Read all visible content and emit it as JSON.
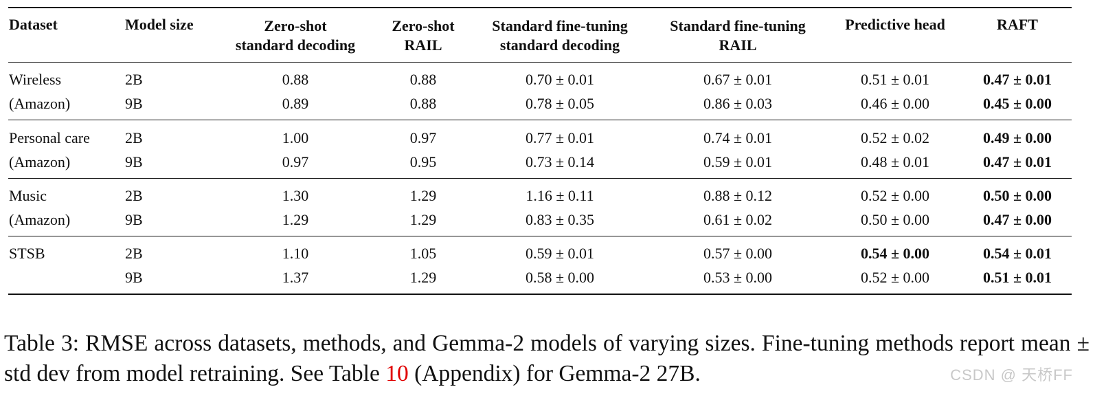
{
  "table": {
    "headers": [
      [
        "Dataset"
      ],
      [
        "Model size"
      ],
      [
        "Zero-shot",
        "standard decoding"
      ],
      [
        "Zero-shot",
        "RAIL"
      ],
      [
        "Standard fine-tuning",
        "standard decoding"
      ],
      [
        "Standard fine-tuning",
        "RAIL"
      ],
      [
        "Predictive head"
      ],
      [
        "RAFT"
      ]
    ],
    "rows": [
      {
        "dataset": "Wireless",
        "size": "2B",
        "zs_std": "0.88",
        "zs_rail": "0.88",
        "ft_std": "0.70 ± 0.01",
        "ft_rail": "0.67 ± 0.01",
        "pred": "0.51 ± 0.01",
        "raft": "0.47 ± 0.01",
        "pred_bold": false,
        "raft_bold": true
      },
      {
        "dataset": "(Amazon)",
        "size": "9B",
        "zs_std": "0.89",
        "zs_rail": "0.88",
        "ft_std": "0.78 ± 0.05",
        "ft_rail": "0.86 ± 0.03",
        "pred": "0.46 ± 0.00",
        "raft": "0.45 ± 0.00",
        "pred_bold": false,
        "raft_bold": true
      },
      {
        "dataset": "Personal care",
        "size": "2B",
        "zs_std": "1.00",
        "zs_rail": "0.97",
        "ft_std": "0.77 ± 0.01",
        "ft_rail": "0.74 ± 0.01",
        "pred": "0.52 ± 0.02",
        "raft": "0.49 ± 0.00",
        "pred_bold": false,
        "raft_bold": true
      },
      {
        "dataset": "(Amazon)",
        "size": "9B",
        "zs_std": "0.97",
        "zs_rail": "0.95",
        "ft_std": "0.73 ± 0.14",
        "ft_rail": "0.59 ± 0.01",
        "pred": "0.48 ± 0.01",
        "raft": "0.47 ± 0.01",
        "pred_bold": false,
        "raft_bold": true
      },
      {
        "dataset": "Music",
        "size": "2B",
        "zs_std": "1.30",
        "zs_rail": "1.29",
        "ft_std": "1.16 ± 0.11",
        "ft_rail": "0.88 ± 0.12",
        "pred": "0.52 ± 0.00",
        "raft": "0.50 ± 0.00",
        "pred_bold": false,
        "raft_bold": true
      },
      {
        "dataset": "(Amazon)",
        "size": "9B",
        "zs_std": "1.29",
        "zs_rail": "1.29",
        "ft_std": "0.83 ± 0.35",
        "ft_rail": "0.61 ± 0.02",
        "pred": "0.50 ± 0.00",
        "raft": "0.47 ± 0.00",
        "pred_bold": false,
        "raft_bold": true
      },
      {
        "dataset": "STSB",
        "size": "2B",
        "zs_std": "1.10",
        "zs_rail": "1.05",
        "ft_std": "0.59 ± 0.01",
        "ft_rail": "0.57 ± 0.00",
        "pred": "0.54 ± 0.00",
        "raft": "0.54 ± 0.01",
        "pred_bold": true,
        "raft_bold": true
      },
      {
        "dataset": "",
        "size": "9B",
        "zs_std": "1.37",
        "zs_rail": "1.29",
        "ft_std": "0.58 ± 0.00",
        "ft_rail": "0.53 ± 0.00",
        "pred": "0.52 ± 0.00",
        "raft": "0.51 ± 0.01",
        "pred_bold": false,
        "raft_bold": true
      }
    ]
  },
  "caption": {
    "before": "Table 3: RMSE across datasets, methods, and Gemma-2 models of varying sizes. Fine-tuning methods report mean ± std dev from model retraining. See Table ",
    "ref": "10",
    "after": " (Appendix) for Gemma-2 27B."
  },
  "watermark": "CSDN @ 天桥FF"
}
